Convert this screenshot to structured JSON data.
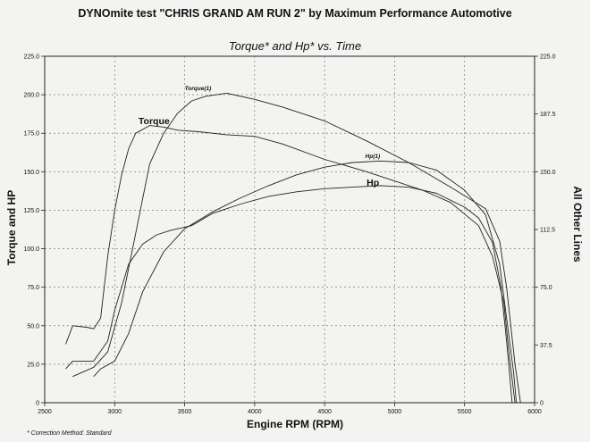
{
  "chart_data": {
    "type": "line",
    "title": "DYNOmite test \"CHRIS GRAND AM RUN 2\" by Maximum Performance Automotive",
    "subtitle": "Torque* and Hp* vs. Time",
    "xlabel": "Engine RPM (RPM)",
    "ylabel": "Torque and HP",
    "ylabel_right": "All Other Lines",
    "footnote": "* Correction Method: Standard",
    "xlim": [
      2500,
      6000
    ],
    "ylim": [
      0,
      225
    ],
    "ylim_right": [
      0,
      225
    ],
    "x_ticks": [
      "2500",
      "3000",
      "3500",
      "4000",
      "4500",
      "5000",
      "5500",
      "6000"
    ],
    "y_ticks": [
      "0",
      "25.0",
      "50.0",
      "75.0",
      "100.0",
      "125.0",
      "150.0",
      "175.0",
      "200.0",
      "225.0"
    ],
    "y_right_ticks": [
      "0",
      "37.5",
      "75.0",
      "112.5",
      "150.0",
      "187.5",
      "225.0"
    ],
    "grid": true,
    "series": [
      {
        "name": "Torque(1)",
        "color": "#222222",
        "x": [
          2700,
          2850,
          2950,
          3050,
          3150,
          3250,
          3350,
          3450,
          3550,
          3650,
          3800,
          4000,
          4200,
          4500,
          4800,
          5100,
          5400,
          5650,
          5750,
          5800,
          5830,
          5860,
          5900
        ],
        "y": [
          17,
          23,
          33,
          65,
          110,
          155,
          175,
          188,
          196,
          199,
          201,
          197,
          192,
          183,
          170,
          156,
          140,
          126,
          105,
          75,
          50,
          25,
          0
        ]
      },
      {
        "name": "Torque",
        "color": "#222222",
        "x": [
          2650,
          2700,
          2800,
          2850,
          2900,
          2950,
          3000,
          3050,
          3100,
          3150,
          3250,
          3350,
          3450,
          3600,
          3800,
          4000,
          4200,
          4500,
          4800,
          5000,
          5200,
          5400,
          5600,
          5700,
          5780,
          5820,
          5860
        ],
        "y": [
          38,
          50,
          49,
          48,
          55,
          95,
          125,
          148,
          165,
          175,
          180,
          179,
          177,
          176,
          174,
          173,
          168,
          158,
          150,
          144,
          138,
          130,
          115,
          95,
          65,
          30,
          0
        ]
      },
      {
        "name": "Hp(1)",
        "color": "#222222",
        "x": [
          2850,
          2900,
          3000,
          3100,
          3200,
          3350,
          3500,
          3700,
          3900,
          4100,
          4300,
          4500,
          4700,
          4900,
          5100,
          5300,
          5500,
          5650,
          5750,
          5800,
          5850,
          5870
        ],
        "y": [
          17,
          22,
          27,
          45,
          72,
          98,
          113,
          124,
          133,
          141,
          148,
          153,
          156,
          157,
          156,
          151,
          138,
          122,
          90,
          55,
          20,
          0
        ]
      },
      {
        "name": "Hp",
        "color": "#222222",
        "x": [
          2650,
          2700,
          2850,
          2950,
          3000,
          3100,
          3200,
          3300,
          3400,
          3550,
          3700,
          3900,
          4100,
          4300,
          4500,
          4700,
          4900,
          5100,
          5300,
          5500,
          5600,
          5700,
          5760,
          5800,
          5840
        ],
        "y": [
          22,
          27,
          27,
          40,
          60,
          90,
          103,
          109,
          112,
          115,
          123,
          129,
          134,
          137,
          139,
          140,
          141,
          140,
          136,
          127,
          120,
          104,
          75,
          40,
          0
        ]
      }
    ],
    "annotations": [
      {
        "text": "Torque(1)",
        "x": 3500,
        "y": 203
      },
      {
        "text": "Torque",
        "x": 3170,
        "y": 181
      },
      {
        "text": "Hp(1)",
        "x": 4790,
        "y": 159
      },
      {
        "text": "Hp",
        "x": 4800,
        "y": 141
      }
    ]
  }
}
